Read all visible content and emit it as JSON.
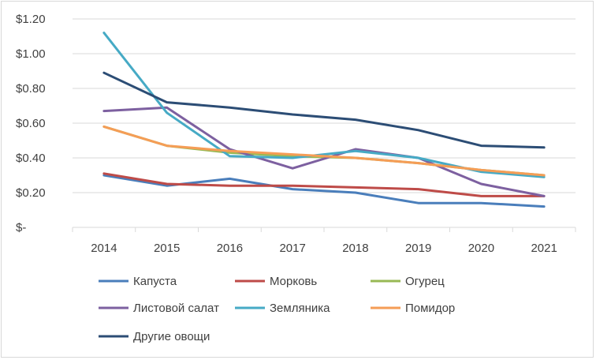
{
  "chart_data": {
    "type": "line",
    "title": "",
    "xlabel": "",
    "ylabel": "",
    "categories": [
      "2014",
      "2015",
      "2016",
      "2017",
      "2018",
      "2019",
      "2020",
      "2021"
    ],
    "ylim": [
      0,
      1.2
    ],
    "y_ticks": [
      {
        "value": 0,
        "label": "$-"
      },
      {
        "value": 0.2,
        "label": "$0.20"
      },
      {
        "value": 0.4,
        "label": "$0.40"
      },
      {
        "value": 0.6,
        "label": "$0.60"
      },
      {
        "value": 0.8,
        "label": "$0.80"
      },
      {
        "value": 1.0,
        "label": "$1.00"
      },
      {
        "value": 1.2,
        "label": "$1.20"
      }
    ],
    "grid": "horizontal",
    "legend_position": "bottom",
    "series": [
      {
        "name": "Капуста",
        "color": "#4a7ebb",
        "values": [
          0.3,
          0.24,
          0.28,
          0.22,
          0.2,
          0.14,
          0.14,
          0.12
        ]
      },
      {
        "name": "Морковь",
        "color": "#be4b48",
        "values": [
          0.31,
          0.25,
          0.24,
          0.24,
          0.23,
          0.22,
          0.18,
          0.18
        ]
      },
      {
        "name": "Огурец",
        "color": "#98b954",
        "values": [
          0.58,
          0.47,
          0.43,
          0.41,
          0.4,
          0.37,
          0.33,
          0.3
        ]
      },
      {
        "name": "Листовой салат",
        "color": "#7d60a0",
        "values": [
          0.67,
          0.69,
          0.45,
          0.34,
          0.45,
          0.4,
          0.25,
          0.18
        ]
      },
      {
        "name": "Земляника",
        "color": "#46aac5",
        "values": [
          1.12,
          0.66,
          0.41,
          0.4,
          0.44,
          0.4,
          0.32,
          0.29
        ]
      },
      {
        "name": "Помидор",
        "color": "#f59d56",
        "values": [
          0.58,
          0.47,
          0.44,
          0.42,
          0.4,
          0.37,
          0.33,
          0.3
        ]
      },
      {
        "name": "Другие овощи",
        "color": "#2c4d75",
        "values": [
          0.89,
          0.72,
          0.69,
          0.65,
          0.62,
          0.56,
          0.47,
          0.46
        ]
      }
    ]
  }
}
